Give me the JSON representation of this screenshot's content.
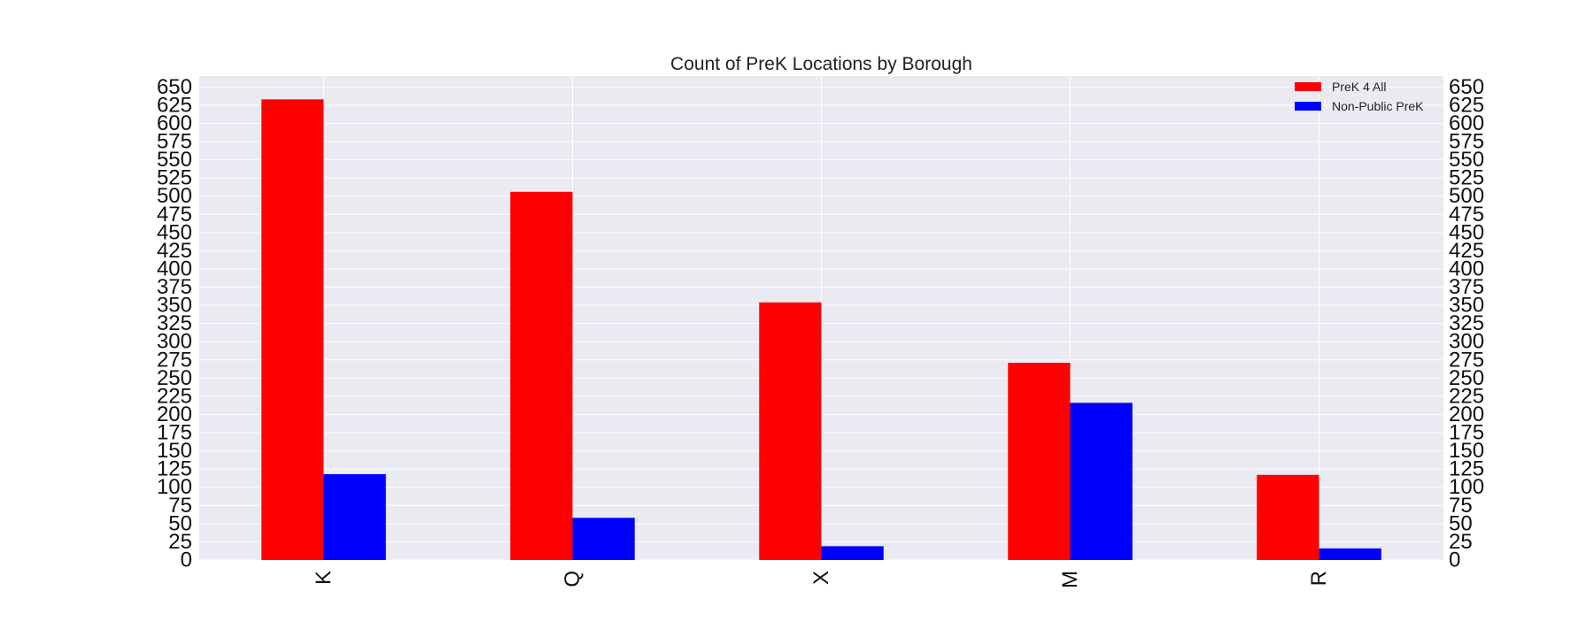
{
  "chart_data": {
    "type": "bar",
    "title": "Count of PreK Locations by Borough",
    "xlabel": "",
    "ylabel": "",
    "categories": [
      "K",
      "Q",
      "X",
      "M",
      "R"
    ],
    "series": [
      {
        "name": "PreK 4 All",
        "color": "#ff0000",
        "values": [
          633,
          506,
          354,
          271,
          117
        ]
      },
      {
        "name": "Non-Public PreK",
        "color": "#0000ff",
        "values": [
          118,
          58,
          19,
          216,
          16
        ]
      }
    ],
    "ylim": [
      0,
      665
    ],
    "y_ticks": [
      0,
      25,
      50,
      75,
      100,
      125,
      150,
      175,
      200,
      225,
      250,
      275,
      300,
      325,
      350,
      375,
      400,
      425,
      450,
      475,
      500,
      525,
      550,
      575,
      600,
      625,
      650
    ],
    "grid": true,
    "legend_position": "top-right",
    "secondary_y_axis_labels": true,
    "x_tick_rotation": "vertical",
    "plot_background": "#eaeaf2"
  }
}
